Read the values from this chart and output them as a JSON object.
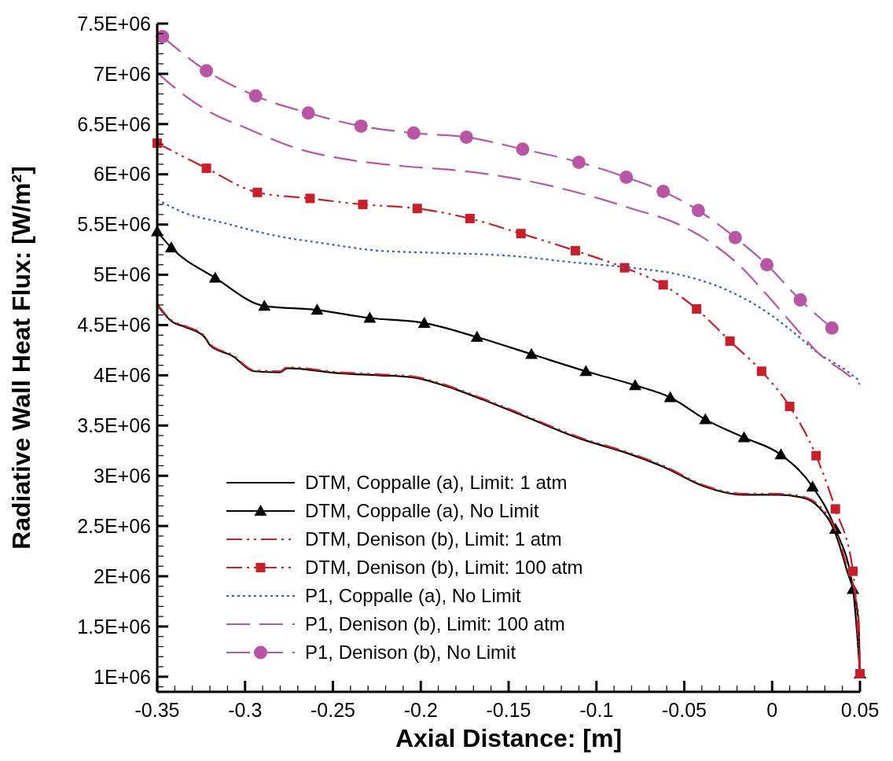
{
  "chart_data": {
    "type": "line",
    "xlabel": "Axial Distance: [m]",
    "ylabel": "Radiative Wall Heat Flux: [W/m²]",
    "legend": "bottom left",
    "grid": false,
    "xlim": [
      -0.35,
      0.05
    ],
    "xticks": [
      -0.35,
      {
        "value": -0.34,
        "label": null
      },
      {
        "value": -0.33,
        "label": null
      },
      {
        "value": -0.32,
        "label": null
      },
      {
        "value": -0.31,
        "label": null
      },
      -0.3,
      {
        "value": -0.29,
        "label": null
      },
      {
        "value": -0.28,
        "label": null
      },
      {
        "value": -0.27,
        "label": null
      },
      {
        "value": -0.26,
        "label": null
      },
      -0.25,
      {
        "value": -0.24,
        "label": null
      },
      {
        "value": -0.23,
        "label": null
      },
      {
        "value": -0.22,
        "label": null
      },
      {
        "value": -0.21,
        "label": null
      },
      -0.2,
      {
        "value": -0.19,
        "label": null
      },
      {
        "value": -0.18,
        "label": null
      },
      {
        "value": -0.17,
        "label": null
      },
      {
        "value": -0.16,
        "label": null
      },
      -0.15,
      {
        "value": -0.14,
        "label": null
      },
      {
        "value": -0.13,
        "label": null
      },
      {
        "value": -0.12,
        "label": null
      },
      {
        "value": -0.11,
        "label": null
      },
      -0.1,
      {
        "value": -0.09,
        "label": null
      },
      {
        "value": -0.08,
        "label": null
      },
      {
        "value": -0.07,
        "label": null
      },
      {
        "value": -0.06,
        "label": null
      },
      -0.05,
      {
        "value": -0.04,
        "label": null
      },
      {
        "value": -0.03,
        "label": null
      },
      {
        "value": -0.02,
        "label": null
      },
      {
        "value": -0.01,
        "label": null
      },
      0,
      {
        "value": 0.01,
        "label": null
      },
      {
        "value": 0.02,
        "label": null
      },
      {
        "value": 0.03,
        "label": null
      },
      {
        "value": 0.04,
        "label": null
      },
      0.05
    ],
    "ylim": [
      850000,
      7500000
    ],
    "yticks": [
      {
        "value": 900000,
        "label": null
      },
      {
        "value": 1000000,
        "label": "1E+06"
      },
      {
        "value": 1100000,
        "label": null
      },
      {
        "value": 1200000,
        "label": null
      },
      {
        "value": 1300000,
        "label": null
      },
      {
        "value": 1400000,
        "label": null
      },
      {
        "value": 1500000,
        "label": "1.5E+06"
      },
      {
        "value": 1600000,
        "label": null
      },
      {
        "value": 1700000,
        "label": null
      },
      {
        "value": 1800000,
        "label": null
      },
      {
        "value": 1900000,
        "label": null
      },
      {
        "value": 2000000,
        "label": "2E+06"
      },
      {
        "value": 2100000,
        "label": null
      },
      {
        "value": 2200000,
        "label": null
      },
      {
        "value": 2300000,
        "label": null
      },
      {
        "value": 2400000,
        "label": null
      },
      {
        "value": 2500000,
        "label": "2.5E+06"
      },
      {
        "value": 2600000,
        "label": null
      },
      {
        "value": 2700000,
        "label": null
      },
      {
        "value": 2800000,
        "label": null
      },
      {
        "value": 2900000,
        "label": null
      },
      {
        "value": 3000000,
        "label": "3E+06"
      },
      {
        "value": 3100000,
        "label": null
      },
      {
        "value": 3200000,
        "label": null
      },
      {
        "value": 3300000,
        "label": null
      },
      {
        "value": 3400000,
        "label": null
      },
      {
        "value": 3500000,
        "label": "3.5E+06"
      },
      {
        "value": 3600000,
        "label": null
      },
      {
        "value": 3700000,
        "label": null
      },
      {
        "value": 3800000,
        "label": null
      },
      {
        "value": 3900000,
        "label": null
      },
      {
        "value": 4000000,
        "label": "4E+06"
      },
      {
        "value": 4100000,
        "label": null
      },
      {
        "value": 4200000,
        "label": null
      },
      {
        "value": 4300000,
        "label": null
      },
      {
        "value": 4400000,
        "label": null
      },
      {
        "value": 4500000,
        "label": "4.5E+06"
      },
      {
        "value": 4600000,
        "label": null
      },
      {
        "value": 4700000,
        "label": null
      },
      {
        "value": 4800000,
        "label": null
      },
      {
        "value": 4900000,
        "label": null
      },
      {
        "value": 5000000,
        "label": "5E+06"
      },
      {
        "value": 5100000,
        "label": null
      },
      {
        "value": 5200000,
        "label": null
      },
      {
        "value": 5300000,
        "label": null
      },
      {
        "value": 5400000,
        "label": null
      },
      {
        "value": 5500000,
        "label": "5.5E+06"
      },
      {
        "value": 5600000,
        "label": null
      },
      {
        "value": 5700000,
        "label": null
      },
      {
        "value": 5800000,
        "label": null
      },
      {
        "value": 5900000,
        "label": null
      },
      {
        "value": 6000000,
        "label": "6E+06"
      },
      {
        "value": 6100000,
        "label": null
      },
      {
        "value": 6200000,
        "label": null
      },
      {
        "value": 6300000,
        "label": null
      },
      {
        "value": 6400000,
        "label": null
      },
      {
        "value": 6500000,
        "label": "6.5E+06"
      },
      {
        "value": 6600000,
        "label": null
      },
      {
        "value": 6700000,
        "label": null
      },
      {
        "value": 6800000,
        "label": null
      },
      {
        "value": 6900000,
        "label": null
      },
      {
        "value": 7000000,
        "label": "7E+06"
      },
      {
        "value": 7100000,
        "label": null
      },
      {
        "value": 7200000,
        "label": null
      },
      {
        "value": 7300000,
        "label": null
      },
      {
        "value": 7400000,
        "label": null
      },
      {
        "value": 7500000,
        "label": "7.5E+06"
      }
    ],
    "series": [
      {
        "name": "DTM, Coppalle (a), Limit: 1 atm",
        "color": "#000000",
        "line_style": "solid",
        "marker": "none",
        "x": [
          -0.35,
          -0.342,
          -0.334,
          -0.323,
          -0.32,
          -0.307,
          -0.295,
          -0.28,
          -0.276,
          -0.246,
          -0.224,
          -0.205,
          -0.187,
          -0.165,
          -0.142,
          -0.111,
          -0.08,
          -0.062,
          -0.038,
          -0.016,
          0.004,
          0.018,
          0.027,
          0.035,
          0.042,
          0.049,
          0.05
        ],
        "values": [
          4700000,
          4540000,
          4480000,
          4380000,
          4300000,
          4190000,
          4040000,
          4030000,
          4070000,
          4020000,
          4000000,
          3980000,
          3900000,
          3760000,
          3600000,
          3380000,
          3210000,
          3090000,
          2890000,
          2810000,
          2810000,
          2780000,
          2680000,
          2470000,
          2090000,
          1590000,
          1030000
        ]
      },
      {
        "name": "DTM, Coppalle (a), No Limit",
        "color": "#000000",
        "line_style": "solid",
        "marker": "triangle",
        "x": [
          -0.35,
          -0.342,
          -0.317,
          -0.289,
          -0.259,
          -0.229,
          -0.198,
          -0.168,
          -0.137,
          -0.106,
          -0.078,
          -0.058,
          -0.038,
          -0.016,
          0.005,
          0.023,
          0.036,
          0.046,
          0.05
        ],
        "values": [
          5430000,
          5270000,
          4970000,
          4690000,
          4650000,
          4570000,
          4520000,
          4380000,
          4210000,
          4040000,
          3900000,
          3780000,
          3560000,
          3380000,
          3210000,
          2890000,
          2470000,
          1870000,
          1030000
        ]
      },
      {
        "name": "DTM, Denison (b), Limit: 1 atm",
        "color": "#c8202a",
        "line_style": "dashdot",
        "marker": "none",
        "x": [
          -0.35,
          -0.342,
          -0.334,
          -0.323,
          -0.32,
          -0.307,
          -0.295,
          -0.28,
          -0.276,
          -0.246,
          -0.224,
          -0.205,
          -0.187,
          -0.165,
          -0.142,
          -0.111,
          -0.08,
          -0.062,
          -0.038,
          -0.016,
          0.004,
          0.018,
          0.027,
          0.035,
          0.042,
          0.049,
          0.05
        ],
        "values": [
          4710000,
          4550000,
          4490000,
          4390000,
          4310000,
          4200000,
          4050000,
          4040000,
          4080000,
          4030000,
          4010000,
          3990000,
          3910000,
          3770000,
          3610000,
          3390000,
          3220000,
          3100000,
          2900000,
          2820000,
          2820000,
          2790000,
          2700000,
          2500000,
          2130000,
          1640000,
          1030000
        ]
      },
      {
        "name": "DTM, Denison (b), Limit: 100 atm",
        "color": "#c8202a",
        "line_style": "dashdot",
        "marker": "square",
        "x": [
          -0.35,
          -0.322,
          -0.293,
          -0.263,
          -0.233,
          -0.202,
          -0.172,
          -0.143,
          -0.112,
          -0.084,
          -0.062,
          -0.043,
          -0.024,
          -0.006,
          0.01,
          0.025,
          0.036,
          0.046,
          0.05
        ],
        "values": [
          6310000,
          6060000,
          5820000,
          5760000,
          5700000,
          5660000,
          5560000,
          5410000,
          5240000,
          5070000,
          4900000,
          4660000,
          4340000,
          4040000,
          3690000,
          3200000,
          2670000,
          2050000,
          1030000
        ]
      },
      {
        "name": "P1, Coppalle (a), No Limit",
        "color": "#3a5fb5",
        "line_style": "dotted",
        "marker": "none",
        "x": [
          -0.35,
          -0.335,
          -0.313,
          -0.283,
          -0.254,
          -0.224,
          -0.194,
          -0.15,
          -0.111,
          -0.08,
          -0.05,
          -0.026,
          -0.004,
          0.012,
          0.027,
          0.042,
          0.05
        ],
        "values": [
          5750000,
          5620000,
          5520000,
          5390000,
          5310000,
          5240000,
          5220000,
          5190000,
          5120000,
          5070000,
          4990000,
          4850000,
          4640000,
          4430000,
          4210000,
          4050000,
          3940000
        ]
      },
      {
        "name": "P1, Denison (b), Limit: 100 atm",
        "color": "#b855a5",
        "line_style": "dashed",
        "marker": "none",
        "x": [
          -0.35,
          -0.334,
          -0.322,
          -0.298,
          -0.269,
          -0.239,
          -0.209,
          -0.18,
          -0.15,
          -0.111,
          -0.08,
          -0.053,
          -0.034,
          -0.019,
          -0.004,
          0.012,
          0.027,
          0.042,
          0.05
        ],
        "values": [
          7010000,
          6780000,
          6640000,
          6450000,
          6250000,
          6140000,
          6080000,
          6040000,
          5970000,
          5820000,
          5660000,
          5500000,
          5310000,
          5100000,
          4820000,
          4500000,
          4210000,
          4020000,
          3910000
        ]
      },
      {
        "name": "P1, Denison (b), No Limit",
        "color": "#b855a5",
        "line_style": "dashed",
        "marker": "circle",
        "x": [
          -0.347,
          -0.322,
          -0.294,
          -0.264,
          -0.234,
          -0.204,
          -0.174,
          -0.142,
          -0.11,
          -0.083,
          -0.062,
          -0.042,
          -0.021,
          -0.003,
          0.016,
          0.034
        ],
        "values": [
          7370000,
          7030000,
          6780000,
          6610000,
          6480000,
          6410000,
          6370000,
          6250000,
          6120000,
          5970000,
          5830000,
          5640000,
          5370000,
          5100000,
          4750000,
          4470000
        ]
      }
    ]
  }
}
